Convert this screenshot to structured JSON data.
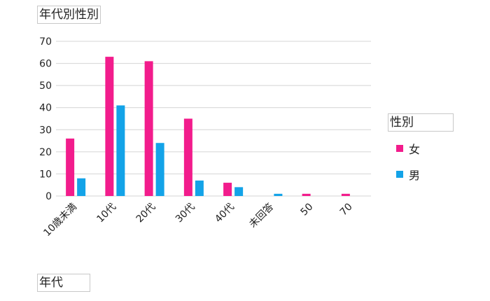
{
  "chart_data": {
    "type": "bar",
    "title": "年代別性別",
    "xlabel": "年代",
    "ylabel": "",
    "categories": [
      "10歳未満",
      "10代",
      "20代",
      "30代",
      "40代",
      "未回答",
      "50",
      "70"
    ],
    "series": [
      {
        "name": "女",
        "color": "#f21c8c",
        "values": [
          26,
          63,
          61,
          35,
          6,
          0,
          1,
          1
        ]
      },
      {
        "name": "男",
        "color": "#13a3e8",
        "values": [
          8,
          41,
          24,
          7,
          4,
          1,
          0,
          0
        ]
      }
    ],
    "ylim": [
      0,
      70
    ],
    "yticks": [
      0,
      10,
      20,
      30,
      40,
      50,
      60,
      70
    ],
    "grid": true,
    "legend": {
      "title": "性別",
      "position": "right"
    }
  }
}
